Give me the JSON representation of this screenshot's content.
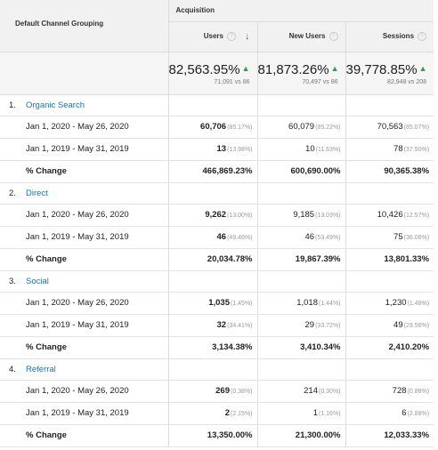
{
  "header": {
    "dimension_label": "Default Channel Grouping",
    "group_label": "Acquisition",
    "metrics": [
      {
        "label": "Users",
        "help_icon": "?",
        "sort_icon": "↓"
      },
      {
        "label": "New Users",
        "help_icon": "?"
      },
      {
        "label": "Sessions",
        "help_icon": "?"
      }
    ]
  },
  "totals": [
    {
      "value": "82,563.95%",
      "arrow": "▲",
      "compare": "71,091 vs 86"
    },
    {
      "value": "81,873.26%",
      "arrow": "▲",
      "compare": "70,497 vs 86"
    },
    {
      "value": "39,778.85%",
      "arrow": "▲",
      "compare": "82,948 vs 208"
    }
  ],
  "colors": {
    "link": "#1a73b5",
    "up_arrow": "#2e9d49",
    "header_bg": "#f1f1f1"
  },
  "groups": [
    {
      "index": "1.",
      "name": "Organic Search",
      "rows": [
        {
          "label": "Jan 1, 2020 - May 26, 2020",
          "cells": [
            {
              "value": "60,706",
              "pct": "(85.17%)"
            },
            {
              "value": "60,079",
              "pct": "(85.22%)"
            },
            {
              "value": "70,563",
              "pct": "(85.07%)"
            }
          ]
        },
        {
          "label": "Jan 1, 2019 - May 31, 2019",
          "cells": [
            {
              "value": "13",
              "pct": "(13.98%)"
            },
            {
              "value": "10",
              "pct": "(11.63%)"
            },
            {
              "value": "78",
              "pct": "(37.50%)"
            }
          ]
        }
      ],
      "change": {
        "label": "% Change",
        "values": [
          "466,869.23%",
          "600,690.00%",
          "90,365.38%"
        ]
      }
    },
    {
      "index": "2.",
      "name": "Direct",
      "rows": [
        {
          "label": "Jan 1, 2020 - May 26, 2020",
          "cells": [
            {
              "value": "9,262",
              "pct": "(13.00%)"
            },
            {
              "value": "9,185",
              "pct": "(13.03%)"
            },
            {
              "value": "10,426",
              "pct": "(12.57%)"
            }
          ]
        },
        {
          "label": "Jan 1, 2019 - May 31, 2019",
          "cells": [
            {
              "value": "46",
              "pct": "(49.46%)"
            },
            {
              "value": "46",
              "pct": "(53.49%)"
            },
            {
              "value": "75",
              "pct": "(36.06%)"
            }
          ]
        }
      ],
      "change": {
        "label": "% Change",
        "values": [
          "20,034.78%",
          "19,867.39%",
          "13,801.33%"
        ]
      }
    },
    {
      "index": "3.",
      "name": "Social",
      "rows": [
        {
          "label": "Jan 1, 2020 - May 26, 2020",
          "cells": [
            {
              "value": "1,035",
              "pct": "(1.45%)"
            },
            {
              "value": "1,018",
              "pct": "(1.44%)"
            },
            {
              "value": "1,230",
              "pct": "(1.48%)"
            }
          ]
        },
        {
          "label": "Jan 1, 2019 - May 31, 2019",
          "cells": [
            {
              "value": "32",
              "pct": "(34.41%)"
            },
            {
              "value": "29",
              "pct": "(33.72%)"
            },
            {
              "value": "49",
              "pct": "(23.56%)"
            }
          ]
        }
      ],
      "change": {
        "label": "% Change",
        "values": [
          "3,134.38%",
          "3,410.34%",
          "2,410.20%"
        ]
      }
    },
    {
      "index": "4.",
      "name": "Referral",
      "rows": [
        {
          "label": "Jan 1, 2020 - May 26, 2020",
          "cells": [
            {
              "value": "269",
              "pct": "(0.38%)"
            },
            {
              "value": "214",
              "pct": "(0.30%)"
            },
            {
              "value": "728",
              "pct": "(0.88%)"
            }
          ]
        },
        {
          "label": "Jan 1, 2019 - May 31, 2019",
          "cells": [
            {
              "value": "2",
              "pct": "(2.15%)"
            },
            {
              "value": "1",
              "pct": "(1.16%)"
            },
            {
              "value": "6",
              "pct": "(2.88%)"
            }
          ]
        }
      ],
      "change": {
        "label": "% Change",
        "values": [
          "13,350.00%",
          "21,300.00%",
          "12,033.33%"
        ]
      }
    }
  ]
}
